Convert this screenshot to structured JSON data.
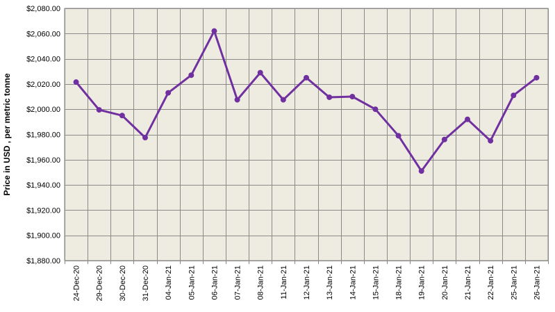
{
  "colors": {
    "plot_background": "#eeebe0",
    "grid": "#8a8a8a",
    "series_line": "#7030a0",
    "marker": "#7030a0"
  },
  "chart_data": {
    "type": "line",
    "title": "",
    "xlabel": "",
    "ylabel": "Price in USD , per metric tonne",
    "ylim": [
      1880,
      2080
    ],
    "y_tick_step": 20,
    "y_tick_labels": [
      "$1,880.00",
      "$1,900.00",
      "$1,920.00",
      "$1,940.00",
      "$1,960.00",
      "$1,980.00",
      "$2,000.00",
      "$2,020.00",
      "$2,040.00",
      "$2,060.00",
      "$2,080.00"
    ],
    "grid": true,
    "legend": "none",
    "categories": [
      "24-Dec-20",
      "29-Dec-20",
      "30-Dec-20",
      "31-Dec-20",
      "04-Jan-21",
      "05-Jan-21",
      "06-Jan-21",
      "07-Jan-21",
      "08-Jan-21",
      "11-Jan-21",
      "12-Jan-21",
      "13-Jan-21",
      "14-Jan-21",
      "15-Jan-21",
      "18-Jan-21",
      "19-Jan-21",
      "20-Jan-21",
      "21-Jan-21",
      "22-Jan-21",
      "25-Jan-21",
      "26-Jan-21"
    ],
    "series": [
      {
        "values": [
          2021.5,
          1999.5,
          1995,
          1977.5,
          2013,
          2027,
          2062,
          2007.5,
          2029,
          2007.5,
          2025,
          2009.5,
          2010,
          2000,
          1979,
          1951,
          1976,
          1992,
          1975,
          2011,
          2025
        ]
      }
    ]
  }
}
